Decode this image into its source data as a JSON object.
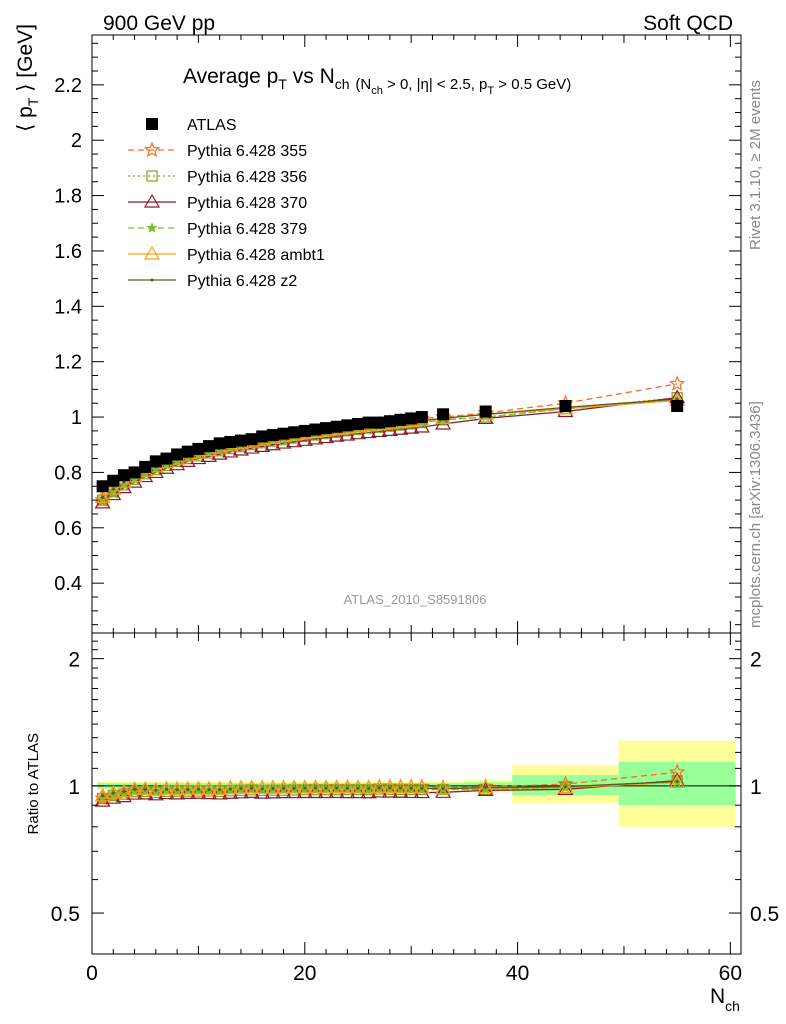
{
  "header": {
    "left": "900 GeV pp",
    "right": "Soft QCD"
  },
  "title": {
    "main": "Average p",
    "main_sub": "T",
    "vs": " vs N",
    "vs_sub": "ch",
    "cuts": [
      {
        "t": " (N",
        "s": false
      },
      {
        "t": "ch",
        "s": true
      },
      {
        "t": " > 0, |η| < 2.5, p",
        "s": false
      },
      {
        "t": "T",
        "s": true
      },
      {
        "t": " > 0.5 GeV)",
        "s": false
      }
    ]
  },
  "axes": {
    "y_label_open": "⟨ p",
    "y_label_sub": "T",
    "y_label_close": " ⟩ [GeV]",
    "ratio_label": "Ratio to ATLAS",
    "x_label": "N",
    "x_label_sub": "ch"
  },
  "side_labels": {
    "rivet": "Rivet 3.1.10, ≥ 2M events",
    "mcplots": "mcplots.cern.ch [arXiv:1306.3436]"
  },
  "analysis_tag": "ATLAS_2010_S8591806",
  "colors": {
    "atlas": "#000000",
    "p355": "#ff6a1f",
    "p356": "#7f9f1f",
    "p370": "#8b1a2b",
    "p379": "#7cbf2a",
    "pambt1": "#f2a31b",
    "pz2": "#5a5a1a",
    "band_outer": "#ffff99",
    "band_inner": "#99ff99"
  },
  "chart_data": {
    "type": "line",
    "x_axis": {
      "range": [
        0,
        61
      ],
      "ticks": [
        0,
        20,
        40,
        60
      ]
    },
    "main_y_axis": {
      "range": [
        0.22,
        2.38
      ],
      "ticks": [
        0.4,
        0.6,
        0.8,
        1,
        1.2,
        1.4,
        1.6,
        1.8,
        2,
        2.2
      ]
    },
    "ratio_y_axis": {
      "scale": "log",
      "range": [
        0.4,
        2.3
      ],
      "ticks": [
        0.5,
        1,
        2
      ]
    },
    "legend_position": "top-left",
    "series": [
      {
        "name": "ATLAS",
        "key": "atlas",
        "marker": "square",
        "style": "none",
        "x": [
          1,
          2,
          3,
          4,
          5,
          6,
          7,
          8,
          9,
          10,
          11,
          12,
          13,
          14,
          15,
          16,
          17,
          18,
          19,
          20,
          21,
          22,
          23,
          24,
          25,
          26,
          27,
          28,
          29,
          30,
          31,
          33,
          37,
          44.5,
          55
        ],
        "y": [
          0.75,
          0.77,
          0.79,
          0.8,
          0.82,
          0.84,
          0.85,
          0.865,
          0.875,
          0.885,
          0.895,
          0.905,
          0.91,
          0.915,
          0.92,
          0.93,
          0.935,
          0.94,
          0.945,
          0.95,
          0.955,
          0.96,
          0.965,
          0.97,
          0.975,
          0.98,
          0.98,
          0.985,
          0.99,
          0.995,
          1,
          1.01,
          1.02,
          1.04,
          1.04
        ]
      },
      {
        "name": "Pythia 6.428 355",
        "key": "p355",
        "marker": "star-open",
        "style": "dashed",
        "x": [
          1,
          2,
          3,
          4,
          5,
          6,
          7,
          8,
          9,
          10,
          11,
          12,
          13,
          14,
          15,
          16,
          17,
          18,
          19,
          20,
          21,
          22,
          23,
          24,
          25,
          26,
          27,
          28,
          29,
          30,
          31,
          33,
          37,
          44.5,
          55
        ],
        "y": [
          0.7,
          0.73,
          0.76,
          0.78,
          0.8,
          0.82,
          0.835,
          0.85,
          0.86,
          0.87,
          0.88,
          0.89,
          0.9,
          0.905,
          0.91,
          0.92,
          0.925,
          0.93,
          0.935,
          0.94,
          0.945,
          0.95,
          0.955,
          0.96,
          0.965,
          0.97,
          0.975,
          0.98,
          0.985,
          0.99,
          0.995,
          1,
          1.015,
          1.05,
          1.12
        ]
      },
      {
        "name": "Pythia 6.428 356",
        "key": "p356",
        "marker": "square-open",
        "style": "dotted",
        "x": [
          1,
          2,
          3,
          4,
          5,
          6,
          7,
          8,
          9,
          10,
          11,
          12,
          13,
          14,
          15,
          16,
          17,
          18,
          19,
          20,
          21,
          22,
          23,
          24,
          25,
          26,
          27,
          28,
          29,
          30,
          31,
          33,
          37,
          44.5,
          55
        ],
        "y": [
          0.7,
          0.73,
          0.755,
          0.775,
          0.795,
          0.81,
          0.825,
          0.84,
          0.85,
          0.86,
          0.87,
          0.878,
          0.886,
          0.893,
          0.9,
          0.907,
          0.913,
          0.918,
          0.924,
          0.93,
          0.935,
          0.94,
          0.945,
          0.95,
          0.955,
          0.96,
          0.963,
          0.967,
          0.971,
          0.975,
          0.98,
          0.99,
          1.0,
          1.03,
          1.07
        ]
      },
      {
        "name": "Pythia 6.428 370",
        "key": "p370",
        "marker": "triangle-open",
        "style": "solid",
        "x": [
          1,
          2,
          3,
          4,
          5,
          6,
          7,
          8,
          9,
          10,
          11,
          12,
          13,
          14,
          15,
          16,
          17,
          18,
          19,
          20,
          21,
          22,
          23,
          24,
          25,
          26,
          27,
          28,
          29,
          30,
          31,
          33,
          37,
          44.5,
          55
        ],
        "y": [
          0.69,
          0.72,
          0.745,
          0.765,
          0.785,
          0.8,
          0.815,
          0.828,
          0.84,
          0.85,
          0.858,
          0.866,
          0.874,
          0.881,
          0.888,
          0.894,
          0.9,
          0.906,
          0.911,
          0.916,
          0.921,
          0.926,
          0.931,
          0.935,
          0.94,
          0.944,
          0.948,
          0.952,
          0.956,
          0.96,
          0.964,
          0.975,
          0.995,
          1.02,
          1.07
        ]
      },
      {
        "name": "Pythia 6.428 379",
        "key": "p379",
        "marker": "star",
        "style": "dashed",
        "x": [
          1,
          2,
          3,
          4,
          5,
          6,
          7,
          8,
          9,
          10,
          11,
          12,
          13,
          14,
          15,
          16,
          17,
          18,
          19,
          20,
          21,
          22,
          23,
          24,
          25,
          26,
          27,
          28,
          29,
          30,
          31,
          33,
          37,
          44.5,
          55
        ],
        "y": [
          0.7,
          0.73,
          0.755,
          0.775,
          0.795,
          0.812,
          0.827,
          0.84,
          0.852,
          0.862,
          0.872,
          0.88,
          0.888,
          0.895,
          0.902,
          0.909,
          0.915,
          0.921,
          0.926,
          0.932,
          0.937,
          0.942,
          0.947,
          0.951,
          0.956,
          0.96,
          0.964,
          0.968,
          0.972,
          0.976,
          0.98,
          0.99,
          1.0,
          1.03,
          1.06
        ]
      },
      {
        "name": "Pythia 6.428 ambt1",
        "key": "pambt1",
        "marker": "triangle-open",
        "style": "solid",
        "x": [
          1,
          2,
          3,
          4,
          5,
          6,
          7,
          8,
          9,
          10,
          11,
          12,
          13,
          14,
          15,
          16,
          17,
          18,
          19,
          20,
          21,
          22,
          23,
          24,
          25,
          26,
          27,
          28,
          29,
          30,
          31,
          33,
          37,
          44.5,
          55
        ],
        "y": [
          0.71,
          0.74,
          0.765,
          0.785,
          0.805,
          0.82,
          0.835,
          0.848,
          0.86,
          0.87,
          0.879,
          0.888,
          0.896,
          0.903,
          0.91,
          0.917,
          0.923,
          0.929,
          0.935,
          0.94,
          0.945,
          0.95,
          0.955,
          0.96,
          0.964,
          0.968,
          0.972,
          0.976,
          0.98,
          0.984,
          0.988,
          0.995,
          1.01,
          1.03,
          1.06
        ]
      },
      {
        "name": "Pythia 6.428 z2",
        "key": "pz2",
        "marker": "dot",
        "style": "solid",
        "x": [
          1,
          2,
          3,
          4,
          5,
          6,
          7,
          8,
          9,
          10,
          11,
          12,
          13,
          14,
          15,
          16,
          17,
          18,
          19,
          20,
          21,
          22,
          23,
          24,
          25,
          26,
          27,
          28,
          29,
          30,
          31,
          33,
          37,
          44.5,
          55
        ],
        "y": [
          0.71,
          0.74,
          0.765,
          0.785,
          0.803,
          0.82,
          0.834,
          0.847,
          0.858,
          0.868,
          0.877,
          0.886,
          0.894,
          0.901,
          0.908,
          0.915,
          0.921,
          0.927,
          0.932,
          0.938,
          0.943,
          0.948,
          0.953,
          0.957,
          0.962,
          0.966,
          0.97,
          0.974,
          0.978,
          0.982,
          0.986,
          0.995,
          1.01,
          1.035,
          1.065
        ]
      }
    ],
    "ratio_bands": [
      {
        "x0": 0.5,
        "x1": 35,
        "inner": [
          0.985,
          1.015
        ],
        "outer": [
          0.975,
          1.025
        ]
      },
      {
        "x0": 35,
        "x1": 39.5,
        "inner": [
          0.98,
          1.02
        ],
        "outer": [
          0.965,
          1.035
        ]
      },
      {
        "x0": 39.5,
        "x1": 49.5,
        "inner": [
          0.95,
          1.06
        ],
        "outer": [
          0.91,
          1.12
        ]
      },
      {
        "x0": 49.5,
        "x1": 60.5,
        "inner": [
          0.9,
          1.14
        ],
        "outer": [
          0.8,
          1.28
        ]
      }
    ]
  }
}
